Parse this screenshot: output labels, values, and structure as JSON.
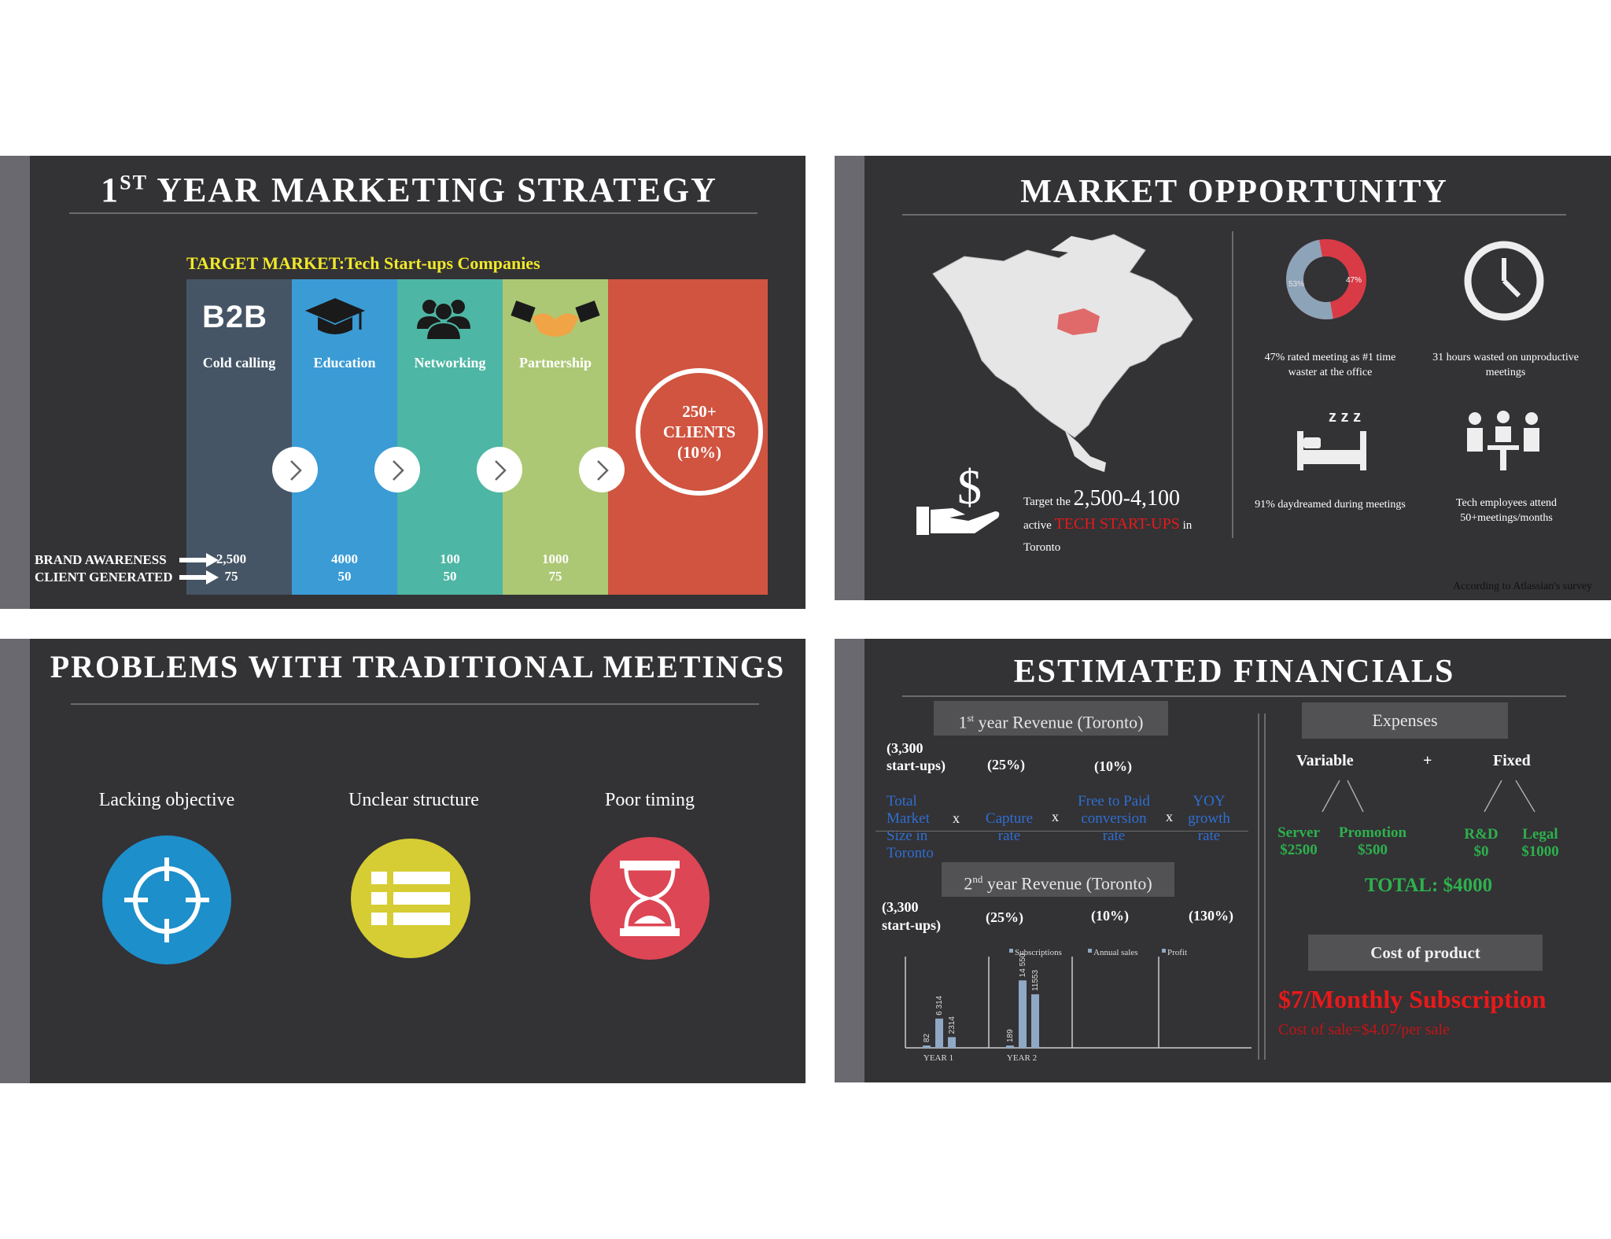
{
  "slide1": {
    "title_main": "1",
    "title_sup": "ST",
    "title_rest": " YEAR MARKETING STRATEGY",
    "target_label": "TARGET MARKET:",
    "target_value": "Tech Start-ups Companies",
    "b2b": "B2B",
    "columns": [
      {
        "label": "Cold calling",
        "awareness": "2,500",
        "clients": "75",
        "color": "#455566"
      },
      {
        "label": "Education",
        "awareness": "4000",
        "clients": "50",
        "color": "#3a9bd5"
      },
      {
        "label": "Networking",
        "awareness": "100",
        "clients": "50",
        "color": "#4db6a4"
      },
      {
        "label": "Partnership",
        "awareness": "1000",
        "clients": "75",
        "color": "#acc874"
      }
    ],
    "result_color": "#d05440",
    "result_line1": "250+",
    "result_line2": "CLIENTS",
    "result_line3": "(10%)",
    "brand_awareness": "BRAND AWARENESS",
    "client_generated": "CLIENT GENERATED"
  },
  "slide2": {
    "title": "MARKET OPPORTUNITY",
    "donut_left": "53%",
    "donut_right": "47%",
    "stat1": "47% rated meeting as #1 time waster at the office",
    "stat2": "31 hours  wasted on unproductive meetings",
    "stat3": "91%  daydreamed during meetings",
    "stat4": "Tech employees attend 50+meetings/months",
    "target_pre": "Target the ",
    "target_range": "2,500-4,100",
    "target_active": "active ",
    "target_highlight": "TECH START-UPS",
    "target_in": " in",
    "target_city": "Toronto",
    "source": "According to Atlassian's survey",
    "icons": [
      "dollar-hand-icon",
      "clock-icon",
      "bed-icon",
      "team-icon",
      "north-america-map"
    ]
  },
  "slide3": {
    "title": "PROBLEMS WITH TRADITIONAL MEETINGS",
    "problems": [
      {
        "label": "Lacking objective",
        "icon": "crosshair-icon",
        "color": "#1d8fcb"
      },
      {
        "label": "Unclear structure",
        "icon": "list-icon",
        "color": "#d5cd33"
      },
      {
        "label": "Poor timing",
        "icon": "hourglass-icon",
        "color": "#dd4654"
      }
    ]
  },
  "slide4": {
    "title": "ESTIMATED FINANCIALS",
    "rev1_pre": "1",
    "rev1_sup": "st",
    "rev1_rest": " year Revenue (Toronto)",
    "rev2_pre": "2",
    "rev2_sup": "nd",
    "rev2_rest": " year Revenue (Toronto)",
    "r1_a1": "(3,300",
    "r1_a2": "start-ups)",
    "r1_b": "(25%)",
    "r1_c": "(10%)",
    "f_total": [
      "Total",
      "Market",
      "Size in",
      "Toronto"
    ],
    "f_capture": [
      "Capture",
      "rate"
    ],
    "f_free": [
      "Free to Paid",
      "conversion",
      "rate"
    ],
    "f_yoy": [
      "YOY",
      "growth",
      "rate"
    ],
    "f_x": "x",
    "r2_a1": "(3,300",
    "r2_a2": "start-ups)",
    "r2_b": "(25%)",
    "r2_c": "(10%)",
    "r2_d": "(130%)",
    "expenses_label": "Expenses",
    "variable": "Variable",
    "plus": "+",
    "fixed": "Fixed",
    "server": "Server",
    "server_v": "$2500",
    "promotion": "Promotion",
    "promotion_v": "$500",
    "rd": "R&D",
    "rd_v": "$0",
    "legal": "Legal",
    "legal_v": "$1000",
    "total": "TOTAL: $4000",
    "cost_label": "Cost of product",
    "price": "$7/Monthly Subscription",
    "cost_sale": "Cost of sale=$4.07/per sale",
    "green": "#2db14d",
    "blue": "#2f6fd0",
    "red": "#e8191a"
  },
  "chart_data": {
    "type": "bar",
    "categories": [
      "YEAR 1",
      "YEAR 2"
    ],
    "series": [
      {
        "name": "Subscriptions",
        "values": [
          82,
          189
        ],
        "color": "#8fa8c4"
      },
      {
        "name": "Annual sales",
        "values": [
          6314,
          14550
        ],
        "color": "#8fa8c4"
      },
      {
        "name": "Profit",
        "values": [
          2314,
          11553
        ],
        "color": "#8fa8c4"
      }
    ],
    "data_labels": [
      [
        "82",
        "6 314",
        "2314"
      ],
      [
        "189",
        "14 550",
        "11553"
      ]
    ],
    "ylim": [
      0,
      19000
    ],
    "legend": "top"
  }
}
